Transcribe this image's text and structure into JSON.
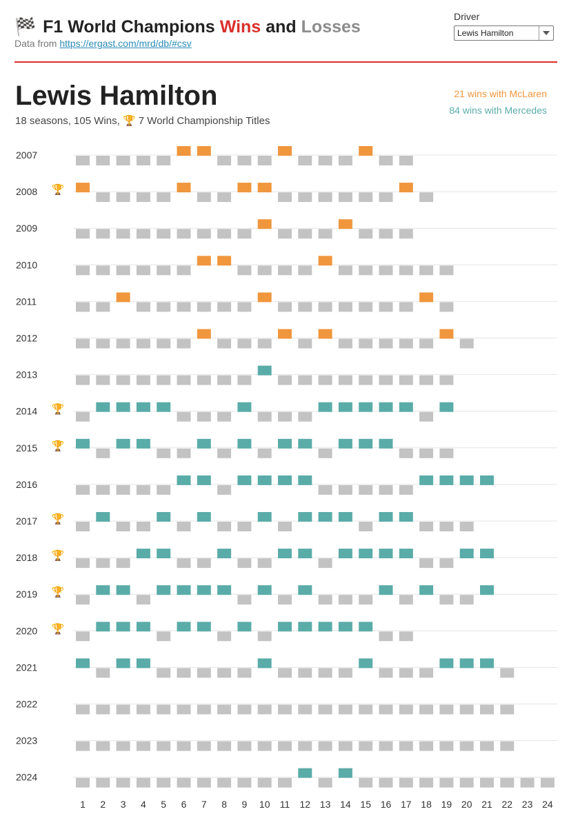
{
  "header": {
    "flag": "🏁",
    "title_prefix": "F1 World Champions",
    "title_wins": "Wins",
    "title_and": "and",
    "title_losses": "Losses",
    "source_prefix": "Data from",
    "source_link": "https://ergast.com/mrd/db/#csv",
    "colors": {
      "wins": "#d9302b",
      "losses": "#8c8c8c"
    }
  },
  "driver_select": {
    "label": "Driver",
    "value": "Lewis Hamilton"
  },
  "driver": {
    "name": "Lewis Hamilton",
    "stats_text": "18 seasons, 105 Wins,",
    "trophy": "🏆",
    "titles_text": "7 World Championship Titles"
  },
  "legend": [
    {
      "text": "21 wins with McLaren",
      "color": "#f0963d"
    },
    {
      "text": "84 wins with Mercedes",
      "color": "#5aaca8"
    }
  ],
  "chart_data": {
    "type": "table",
    "team_colors": {
      "M": "#f0963d",
      "R": "#5aaca8",
      "L": "#c3c3c3"
    },
    "round_ticks": [
      1,
      2,
      3,
      4,
      5,
      6,
      7,
      8,
      9,
      10,
      11,
      12,
      13,
      14,
      15,
      16,
      17,
      18,
      19,
      20,
      21,
      22,
      23,
      24
    ],
    "seasons": [
      {
        "year": "2007",
        "champion": false,
        "rounds": 17,
        "wins": [
          6,
          7,
          11,
          15
        ],
        "team": "M"
      },
      {
        "year": "2008",
        "champion": true,
        "rounds": 18,
        "wins": [
          1,
          6,
          9,
          10,
          17
        ],
        "team": "M"
      },
      {
        "year": "2009",
        "champion": false,
        "rounds": 17,
        "wins": [
          10,
          14
        ],
        "team": "M"
      },
      {
        "year": "2010",
        "champion": false,
        "rounds": 19,
        "wins": [
          7,
          8,
          13
        ],
        "team": "M"
      },
      {
        "year": "2011",
        "champion": false,
        "rounds": 19,
        "wins": [
          3,
          10,
          18
        ],
        "team": "M"
      },
      {
        "year": "2012",
        "champion": false,
        "rounds": 20,
        "wins": [
          7,
          11,
          13,
          19
        ],
        "team": "M"
      },
      {
        "year": "2013",
        "champion": false,
        "rounds": 19,
        "wins": [
          10
        ],
        "team": "R"
      },
      {
        "year": "2014",
        "champion": true,
        "rounds": 19,
        "wins": [
          2,
          3,
          4,
          5,
          9,
          13,
          14,
          15,
          16,
          17,
          19
        ],
        "team": "R"
      },
      {
        "year": "2015",
        "champion": true,
        "rounds": 19,
        "wins": [
          1,
          3,
          4,
          7,
          9,
          11,
          12,
          14,
          15,
          16
        ],
        "team": "R"
      },
      {
        "year": "2016",
        "champion": false,
        "rounds": 21,
        "wins": [
          6,
          7,
          9,
          10,
          11,
          12,
          18,
          19,
          20,
          21
        ],
        "team": "R"
      },
      {
        "year": "2017",
        "champion": true,
        "rounds": 20,
        "wins": [
          2,
          5,
          7,
          10,
          12,
          13,
          14,
          16,
          17
        ],
        "team": "R"
      },
      {
        "year": "2018",
        "champion": true,
        "rounds": 21,
        "wins": [
          4,
          5,
          8,
          11,
          12,
          14,
          15,
          16,
          17,
          20,
          21
        ],
        "team": "R"
      },
      {
        "year": "2019",
        "champion": true,
        "rounds": 21,
        "wins": [
          2,
          3,
          5,
          6,
          7,
          8,
          10,
          12,
          16,
          18,
          21
        ],
        "team": "R"
      },
      {
        "year": "2020",
        "champion": true,
        "rounds": 17,
        "wins": [
          2,
          3,
          4,
          6,
          7,
          9,
          11,
          12,
          13,
          14,
          15
        ],
        "team": "R"
      },
      {
        "year": "2021",
        "champion": false,
        "rounds": 22,
        "wins": [
          1,
          3,
          4,
          10,
          15,
          19,
          20,
          21
        ],
        "team": "R"
      },
      {
        "year": "2022",
        "champion": false,
        "rounds": 22,
        "wins": [],
        "team": "R"
      },
      {
        "year": "2023",
        "champion": false,
        "rounds": 22,
        "wins": [],
        "team": "R"
      },
      {
        "year": "2024",
        "champion": false,
        "rounds": 24,
        "wins": [
          12,
          14
        ],
        "team": "R"
      }
    ]
  }
}
